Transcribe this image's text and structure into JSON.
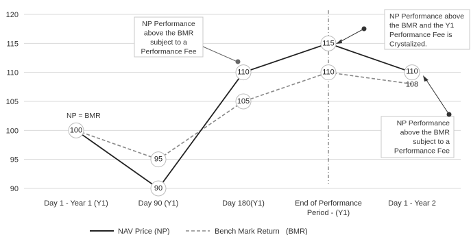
{
  "chart_data": {
    "type": "line",
    "categories": [
      "Day 1 - Year 1 (Y1)",
      "Day 90 (Y1)",
      "Day 180(Y1)",
      "End of Performance|Period - (Y1)",
      "Day 1 - Year 2"
    ],
    "ylim": [
      90,
      120
    ],
    "yticks": [
      "90",
      "95",
      "100",
      "105",
      "110",
      "115",
      "120"
    ],
    "grid": true,
    "legend_position": "bottom",
    "series": [
      {
        "name": "NAV Price (NP)",
        "values": [
          100,
          90,
          110,
          115,
          110
        ],
        "labels": [
          "100",
          "90",
          "110",
          "115",
          "110"
        ],
        "style": "solid",
        "color": "#222222"
      },
      {
        "name": "Bench Mark Return   (BMR)",
        "values": [
          100,
          95,
          105,
          110,
          108
        ],
        "labels": [
          "",
          "95",
          "105",
          "110",
          "108"
        ],
        "style": "dashed",
        "color": "#888888"
      }
    ],
    "vertical_marker_category": 3,
    "annotations": {
      "np_bmr": "NP = BMR",
      "callout1": [
        "NP Performance",
        "above the BMR",
        "subject to a",
        "Performance Fee"
      ],
      "callout2": [
        "NP Performance above",
        "the BMR and the Y1",
        "Performance Fee is",
        "Crystalized."
      ],
      "callout3": [
        "NP Performance",
        "above the BMR",
        "subject to a",
        "Performance Fee"
      ]
    }
  }
}
